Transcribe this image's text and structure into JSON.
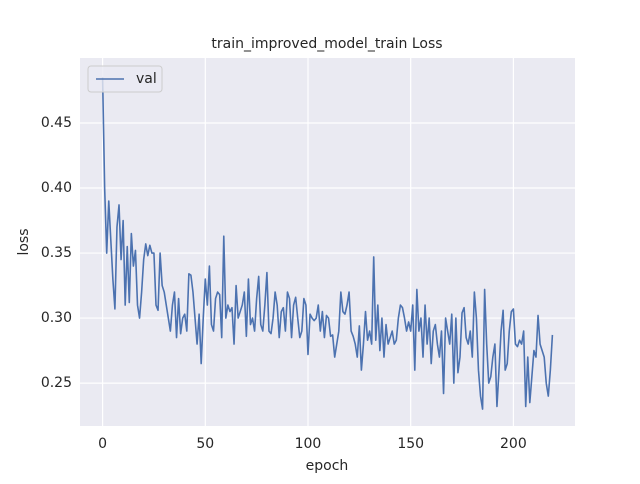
{
  "chart_data": {
    "type": "line",
    "title": "train_improved_model_train Loss",
    "xlabel": "epoch",
    "ylabel": "loss",
    "x": [
      0,
      1,
      2,
      3,
      4,
      5,
      6,
      7,
      8,
      9,
      10,
      11,
      12,
      13,
      14,
      15,
      16,
      17,
      18,
      19,
      20,
      21,
      22,
      23,
      24,
      25,
      26,
      27,
      28,
      29,
      30,
      31,
      32,
      33,
      34,
      35,
      36,
      37,
      38,
      39,
      40,
      41,
      42,
      43,
      44,
      45,
      46,
      47,
      48,
      49,
      50,
      51,
      52,
      53,
      54,
      55,
      56,
      57,
      58,
      59,
      60,
      61,
      62,
      63,
      64,
      65,
      66,
      67,
      68,
      69,
      70,
      71,
      72,
      73,
      74,
      75,
      76,
      77,
      78,
      79,
      80,
      81,
      82,
      83,
      84,
      85,
      86,
      87,
      88,
      89,
      90,
      91,
      92,
      93,
      94,
      95,
      96,
      97,
      98,
      99,
      100,
      101,
      102,
      103,
      104,
      105,
      106,
      107,
      108,
      109,
      110,
      111,
      112,
      113,
      114,
      115,
      116,
      117,
      118,
      119,
      120,
      121,
      122,
      123,
      124,
      125,
      126,
      127,
      128,
      129,
      130,
      131,
      132,
      133,
      134,
      135,
      136,
      137,
      138,
      139,
      140,
      141,
      142,
      143,
      144,
      145,
      146,
      147,
      148,
      149,
      150,
      151,
      152,
      153,
      154,
      155,
      156,
      157,
      158,
      159,
      160,
      161,
      162,
      163,
      164,
      165,
      166,
      167,
      168,
      169,
      170,
      171,
      172,
      173,
      174,
      175,
      176,
      177,
      178,
      179,
      180,
      181,
      182,
      183,
      184,
      185,
      186,
      187,
      188,
      189,
      190,
      191,
      192,
      193,
      194,
      195,
      196,
      197,
      198,
      199,
      200,
      201,
      202,
      203,
      204,
      205,
      206,
      207,
      208,
      209,
      210,
      211,
      212,
      213,
      214,
      215,
      216,
      217,
      218,
      219
    ],
    "series": [
      {
        "name": "val",
        "color": "#4c72b0",
        "values": [
          0.485,
          0.4,
          0.35,
          0.39,
          0.36,
          0.33,
          0.307,
          0.37,
          0.387,
          0.345,
          0.375,
          0.31,
          0.355,
          0.312,
          0.365,
          0.34,
          0.352,
          0.31,
          0.3,
          0.32,
          0.345,
          0.357,
          0.348,
          0.356,
          0.35,
          0.35,
          0.31,
          0.306,
          0.35,
          0.325,
          0.32,
          0.31,
          0.3,
          0.29,
          0.31,
          0.32,
          0.285,
          0.315,
          0.288,
          0.3,
          0.303,
          0.29,
          0.334,
          0.333,
          0.32,
          0.3,
          0.28,
          0.303,
          0.265,
          0.3,
          0.33,
          0.31,
          0.34,
          0.295,
          0.29,
          0.315,
          0.32,
          0.318,
          0.285,
          0.363,
          0.3,
          0.31,
          0.305,
          0.308,
          0.28,
          0.325,
          0.3,
          0.305,
          0.31,
          0.32,
          0.286,
          0.33,
          0.295,
          0.3,
          0.29,
          0.315,
          0.332,
          0.295,
          0.29,
          0.31,
          0.335,
          0.29,
          0.288,
          0.3,
          0.32,
          0.31,
          0.285,
          0.305,
          0.308,
          0.29,
          0.32,
          0.315,
          0.285,
          0.31,
          0.316,
          0.3,
          0.285,
          0.29,
          0.315,
          0.31,
          0.272,
          0.303,
          0.3,
          0.298,
          0.3,
          0.31,
          0.29,
          0.305,
          0.285,
          0.302,
          0.3,
          0.286,
          0.287,
          0.27,
          0.28,
          0.29,
          0.32,
          0.305,
          0.303,
          0.31,
          0.32,
          0.29,
          0.286,
          0.28,
          0.27,
          0.294,
          0.26,
          0.28,
          0.305,
          0.283,
          0.29,
          0.28,
          0.347,
          0.283,
          0.31,
          0.275,
          0.3,
          0.27,
          0.295,
          0.28,
          0.285,
          0.29,
          0.28,
          0.283,
          0.3,
          0.31,
          0.308,
          0.3,
          0.29,
          0.297,
          0.29,
          0.31,
          0.26,
          0.322,
          0.29,
          0.3,
          0.27,
          0.31,
          0.28,
          0.3,
          0.265,
          0.29,
          0.295,
          0.28,
          0.27,
          0.29,
          0.242,
          0.3,
          0.29,
          0.28,
          0.303,
          0.25,
          0.3,
          0.258,
          0.27,
          0.304,
          0.308,
          0.285,
          0.28,
          0.29,
          0.27,
          0.32,
          0.3,
          0.26,
          0.24,
          0.23,
          0.322,
          0.28,
          0.25,
          0.255,
          0.27,
          0.28,
          0.232,
          0.26,
          0.29,
          0.306,
          0.26,
          0.265,
          0.29,
          0.305,
          0.307,
          0.28,
          0.278,
          0.283,
          0.28,
          0.29,
          0.232,
          0.27,
          0.235,
          0.255,
          0.275,
          0.27,
          0.302,
          0.28,
          0.275,
          0.27,
          0.25,
          0.24,
          0.26,
          0.287
        ]
      }
    ],
    "xlim": [
      -11,
      230
    ],
    "ylim": [
      0.217,
      0.5
    ],
    "xticks": [
      0,
      50,
      100,
      150,
      200
    ],
    "yticks": [
      0.25,
      {
        "value": 0.3,
        "label": "0.30"
      },
      0.35,
      {
        "value": 0.4,
        "label": "0.40"
      },
      0.45
    ],
    "grid": true,
    "legend": "upper left"
  }
}
